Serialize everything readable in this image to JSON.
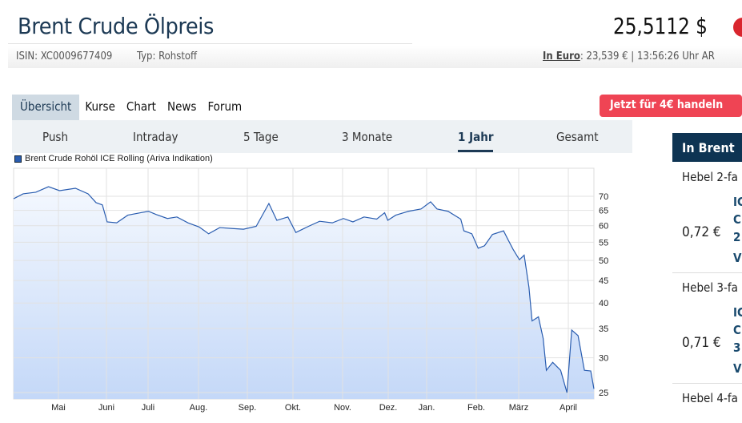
{
  "header": {
    "title": "Brent Crude Ölpreis",
    "isin": "ISIN: XC0009677409",
    "typ": "Typ: Rohstoff",
    "price": "25,5112 $",
    "euro_label": "In Euro",
    "euro_rest": ": 23,539 € | 13:56:26 Uhr AR"
  },
  "tabs": [
    {
      "label": "Übersicht",
      "active": true
    },
    {
      "label": "Kurse"
    },
    {
      "label": "Chart"
    },
    {
      "label": "News"
    },
    {
      "label": "Forum"
    }
  ],
  "trade_button": "Jetzt für 4€ handeln",
  "ranges": [
    {
      "label": "Push"
    },
    {
      "label": "Intraday"
    },
    {
      "label": "5 Tage"
    },
    {
      "label": "3 Monate"
    },
    {
      "label": "1 Jahr",
      "active": true
    },
    {
      "label": "Gesamt"
    }
  ],
  "colors": {
    "accent": "#1d3a55",
    "trade": "#ef4454",
    "line": "#2a5db0",
    "fill": "#c4d8f8"
  },
  "chart_data": {
    "type": "area",
    "legend": "Brent Crude Rohöl ICE Rolling (Ariva Indikation)",
    "legend_position": "top-left",
    "y_scale": "log",
    "ylim": [
      22.5,
      75
    ],
    "grid": true,
    "yticks": [
      70,
      65,
      60,
      55,
      50,
      45,
      40,
      35,
      30,
      25
    ],
    "xticks": [
      "Mai",
      "Juni",
      "Juli",
      "Aug.",
      "Sep.",
      "Okt.",
      "Nov.",
      "Dez.",
      "Jan.",
      "Feb.",
      "März",
      "April"
    ],
    "x": [
      "2019-04-21",
      "2019-04-27",
      "2019-05-05",
      "2019-05-13",
      "2019-05-20",
      "2019-05-30",
      "2019-06-07",
      "2019-06-12",
      "2019-06-16",
      "2019-06-19",
      "2019-06-25",
      "2019-07-02",
      "2019-07-10",
      "2019-07-15",
      "2019-07-20",
      "2019-07-27",
      "2019-08-02",
      "2019-08-09",
      "2019-08-16",
      "2019-08-22",
      "2019-08-29",
      "2019-09-06",
      "2019-09-13",
      "2019-09-21",
      "2019-09-29",
      "2019-10-04",
      "2019-10-11",
      "2019-10-16",
      "2019-10-24",
      "2019-10-31",
      "2019-11-08",
      "2019-11-15",
      "2019-11-21",
      "2019-11-28",
      "2019-12-06",
      "2019-12-11",
      "2019-12-13",
      "2019-12-18",
      "2019-12-26",
      "2020-01-03",
      "2020-01-09",
      "2020-01-13",
      "2020-01-20",
      "2020-01-28",
      "2020-01-30",
      "2020-02-04",
      "2020-02-08",
      "2020-02-12",
      "2020-02-17",
      "2020-02-24",
      "2020-02-27",
      "2020-03-01",
      "2020-03-05",
      "2020-03-08",
      "2020-03-11",
      "2020-03-13",
      "2020-03-17",
      "2020-03-20",
      "2020-03-22",
      "2020-03-26",
      "2020-03-31",
      "2020-04-04",
      "2020-04-07",
      "2020-04-11",
      "2020-04-15",
      "2020-04-19",
      "2020-04-21"
    ],
    "values": [
      69.1,
      70.9,
      71.5,
      73.6,
      72.1,
      73.0,
      70.9,
      67.7,
      66.9,
      61.2,
      60.9,
      63.4,
      64.2,
      64.7,
      63.6,
      62.3,
      62.8,
      60.9,
      59.6,
      57.5,
      59.4,
      59.1,
      58.9,
      59.8,
      67.4,
      61.7,
      62.8,
      57.9,
      59.8,
      61.4,
      60.9,
      62.3,
      61.2,
      62.8,
      62.1,
      64.2,
      61.7,
      63.4,
      64.7,
      65.5,
      68.0,
      65.5,
      64.7,
      62.1,
      58.4,
      57.5,
      53.3,
      54.0,
      57.3,
      58.4,
      55.6,
      53.0,
      50.2,
      51.4,
      43.5,
      36.4,
      37.2,
      33.2,
      28.1,
      29.3,
      28.1,
      25.0,
      34.7,
      33.7,
      28.1,
      28.0,
      25.5
    ]
  },
  "side": {
    "header": "In Brent",
    "rows": [
      {
        "title": "Hebel 2-fa",
        "price": "0,72 €",
        "l1": "IC",
        "l2": "C",
        "l3": "2",
        "l4": "V"
      },
      {
        "title": "Hebel 3-fa",
        "price": "0,71 €",
        "l1": "IC",
        "l2": "C",
        "l3": "3",
        "l4": "V"
      },
      {
        "title": "Hebel 4-fa"
      }
    ]
  }
}
